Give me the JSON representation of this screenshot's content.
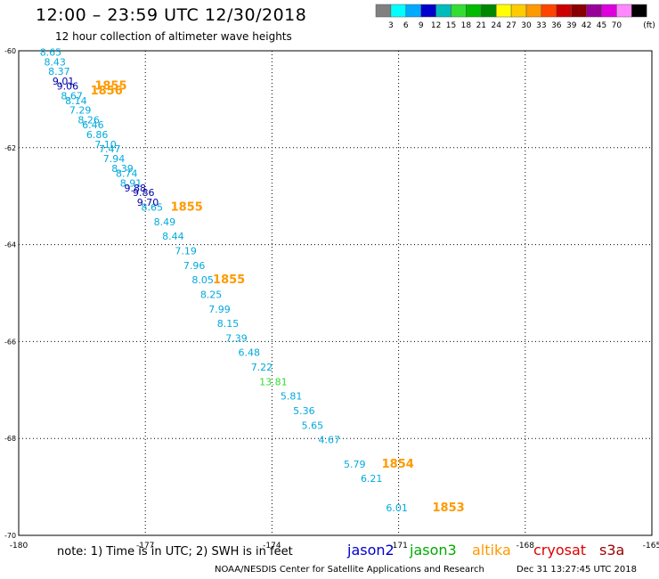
{
  "header": {
    "title": "12:00 – 23:59 UTC 12/30/2018",
    "subtitle": "12 hour collection of altimeter wave heights"
  },
  "colorbar": {
    "unit": "(ft)",
    "colors": [
      "#808080",
      "#00ffff",
      "#00aaff",
      "#0000cc",
      "#00bbbb",
      "#33dd33",
      "#00bb00",
      "#008800",
      "#ffff00",
      "#ffcc00",
      "#ff9900",
      "#ff4400",
      "#cc0000",
      "#880000",
      "#990099",
      "#dd00dd",
      "#ff88ff",
      "#000000"
    ],
    "labels": [
      "3",
      "6",
      "9",
      "12",
      "15",
      "18",
      "21",
      "24",
      "27",
      "30",
      "33",
      "36",
      "39",
      "42",
      "45",
      "70"
    ]
  },
  "chart_data": {
    "type": "scatter",
    "title": "12:00 – 23:59 UTC 12/30/2018",
    "subtitle": "12 hour collection of altimeter wave heights",
    "xlim": [
      -180,
      -165
    ],
    "ylim": [
      -70,
      -60
    ],
    "x_ticks": [
      "-180",
      "-177",
      "-174",
      "-171",
      "-168",
      "-165"
    ],
    "y_ticks": [
      "-60",
      "-62",
      "-64",
      "-66",
      "-68",
      "-70"
    ],
    "grid": true,
    "series": [
      {
        "name": "altika",
        "color": "#00aadd",
        "points": [
          {
            "lon": -179.5,
            "lat": -60.1,
            "v": "8.65"
          },
          {
            "lon": -179.4,
            "lat": -60.3,
            "v": "8.43"
          },
          {
            "lon": -179.3,
            "lat": -60.5,
            "v": "8.37"
          },
          {
            "lon": -179.0,
            "lat": -61.0,
            "v": "8.67"
          },
          {
            "lon": -178.9,
            "lat": -61.1,
            "v": "8.14"
          },
          {
            "lon": -178.8,
            "lat": -61.3,
            "v": "7.29"
          },
          {
            "lon": -178.6,
            "lat": -61.5,
            "v": "8.26"
          },
          {
            "lon": -178.5,
            "lat": -61.6,
            "v": "6.46"
          },
          {
            "lon": -178.4,
            "lat": -61.8,
            "v": "6.86"
          },
          {
            "lon": -178.2,
            "lat": -62.0,
            "v": "7.10"
          },
          {
            "lon": -178.1,
            "lat": -62.1,
            "v": "7.47"
          },
          {
            "lon": -178.0,
            "lat": -62.3,
            "v": "7.94"
          },
          {
            "lon": -177.8,
            "lat": -62.5,
            "v": "8.39"
          },
          {
            "lon": -177.7,
            "lat": -62.6,
            "v": "8.74"
          },
          {
            "lon": -177.6,
            "lat": -62.8,
            "v": "8.91"
          },
          {
            "lon": -177.1,
            "lat": -63.3,
            "v": "8.65"
          },
          {
            "lon": -176.8,
            "lat": -63.6,
            "v": "8.49"
          },
          {
            "lon": -176.6,
            "lat": -63.9,
            "v": "8.44"
          },
          {
            "lon": -176.3,
            "lat": -64.2,
            "v": "7.19"
          },
          {
            "lon": -176.1,
            "lat": -64.5,
            "v": "7.96"
          },
          {
            "lon": -175.9,
            "lat": -64.8,
            "v": "8.05"
          },
          {
            "lon": -175.7,
            "lat": -65.1,
            "v": "8.25"
          },
          {
            "lon": -175.5,
            "lat": -65.4,
            "v": "7.99"
          },
          {
            "lon": -175.3,
            "lat": -65.7,
            "v": "8.15"
          },
          {
            "lon": -175.1,
            "lat": -66.0,
            "v": "7.39"
          },
          {
            "lon": -174.8,
            "lat": -66.3,
            "v": "6.48"
          },
          {
            "lon": -174.5,
            "lat": -66.6,
            "v": "7.22"
          },
          {
            "lon": -173.8,
            "lat": -67.2,
            "v": "5.81"
          },
          {
            "lon": -173.5,
            "lat": -67.5,
            "v": "5.36"
          },
          {
            "lon": -173.3,
            "lat": -67.8,
            "v": "5.65"
          },
          {
            "lon": -172.9,
            "lat": -68.1,
            "v": "4.67"
          },
          {
            "lon": -172.3,
            "lat": -68.6,
            "v": "5.79"
          },
          {
            "lon": -171.9,
            "lat": -68.9,
            "v": "6.21"
          },
          {
            "lon": -171.3,
            "lat": -69.5,
            "v": "6.01"
          }
        ]
      },
      {
        "name": "jason2",
        "color": "#0000aa",
        "points": [
          {
            "lon": -179.2,
            "lat": -60.7,
            "v": "9.01"
          },
          {
            "lon": -179.1,
            "lat": -60.8,
            "v": "9.06"
          },
          {
            "lon": -177.5,
            "lat": -62.9,
            "v": "9.88"
          },
          {
            "lon": -177.3,
            "lat": -63.0,
            "v": "9.86"
          },
          {
            "lon": -177.2,
            "lat": -63.2,
            "v": "9.70"
          }
        ]
      },
      {
        "name": "jason3",
        "color": "#33dd33",
        "points": [
          {
            "lon": -174.3,
            "lat": -66.9,
            "v": "13.81"
          }
        ]
      }
    ],
    "time_labels": [
      {
        "lon": -178.2,
        "lat": -60.8,
        "v": "1855"
      },
      {
        "lon": -178.3,
        "lat": -60.9,
        "v": "1856"
      },
      {
        "lon": -176.4,
        "lat": -63.3,
        "v": "1855"
      },
      {
        "lon": -175.4,
        "lat": -64.8,
        "v": "1855"
      },
      {
        "lon": -171.4,
        "lat": -68.6,
        "v": "1854"
      },
      {
        "lon": -170.2,
        "lat": -69.5,
        "v": "1853"
      }
    ]
  },
  "legend": {
    "note": "note: 1) Time is in UTC; 2) SWH is in feet",
    "satellites": [
      {
        "name": "jason2",
        "color": "#0000cc"
      },
      {
        "name": "jason3",
        "color": "#00aa00"
      },
      {
        "name": "altika",
        "color": "#ff9900"
      },
      {
        "name": "cryosat",
        "color": "#dd0000"
      },
      {
        "name": "s3a",
        "color": "#990000"
      }
    ]
  },
  "footer": {
    "credit": "NOAA/NESDIS Center for Satellite Applications and Research",
    "timestamp": "Dec 31 13:27:45 UTC 2018"
  }
}
